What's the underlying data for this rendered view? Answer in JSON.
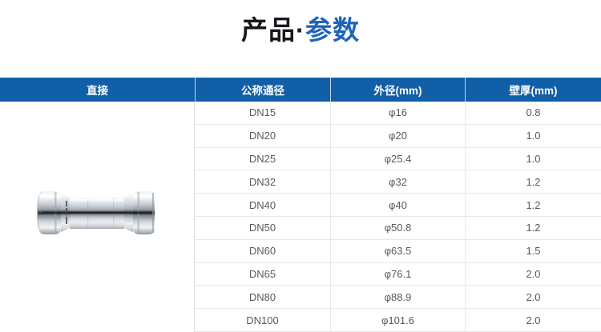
{
  "page": {
    "title_dark": "产品",
    "title_dot": "·",
    "title_blue": "参数"
  },
  "colors": {
    "header_bg": "#115fa6",
    "title_dark": "#17191c",
    "title_blue": "#1e64ba",
    "body_text": "#58595b",
    "row_border": "#e7e7e7"
  },
  "table": {
    "headers": [
      "直接",
      "公称通径",
      "外径(mm)",
      "壁厚(mm)"
    ],
    "product_image": "stainless-steel-press-coupling",
    "rows": [
      {
        "dn": "DN15",
        "od": "φ16",
        "wall": "0.8"
      },
      {
        "dn": "DN20",
        "od": "φ20",
        "wall": "1.0"
      },
      {
        "dn": "DN25",
        "od": "φ25.4",
        "wall": "1.0"
      },
      {
        "dn": "DN32",
        "od": "φ32",
        "wall": "1.2"
      },
      {
        "dn": "DN40",
        "od": "φ40",
        "wall": "1.2"
      },
      {
        "dn": "DN50",
        "od": "φ50.8",
        "wall": "1.2"
      },
      {
        "dn": "DN60",
        "od": "φ63.5",
        "wall": "1.5"
      },
      {
        "dn": "DN65",
        "od": "φ76.1",
        "wall": "2.0"
      },
      {
        "dn": "DN80",
        "od": "φ88.9",
        "wall": "2.0"
      },
      {
        "dn": "DN100",
        "od": "φ101.6",
        "wall": "2.0"
      }
    ]
  }
}
